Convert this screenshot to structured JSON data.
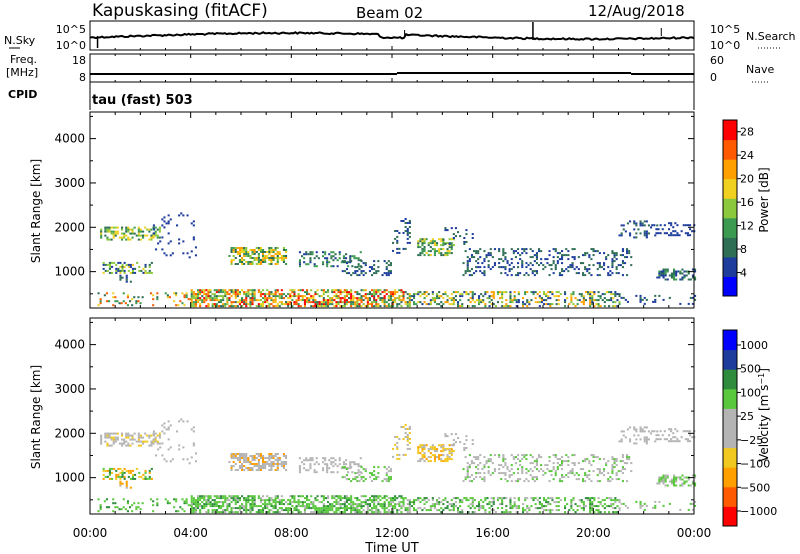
{
  "header": {
    "station": "Kapuskasing (fitACF)",
    "beam": "Beam 02",
    "date": "12/Aug/2018"
  },
  "labels": {
    "n_sky": "N.Sky",
    "n_search": "N.Search",
    "freq_top": "Freq.",
    "freq_unit": "[MHz]",
    "cpid": "CPID",
    "nave": "Nave",
    "ctrl_prog": "tau (fast) 503"
  },
  "noise_axis": {
    "left_top": "10^5",
    "left_bottom": "10^0",
    "right_top": "10^5",
    "right_bottom": "10^0"
  },
  "freq_axis": {
    "left_top": "18",
    "left_bottom": "8",
    "right_top": "60",
    "right_bottom": "0"
  },
  "colors": {
    "power": [
      "#0000ff",
      "#1e3c9c",
      "#2e6e55",
      "#3c9a50",
      "#8cc83c",
      "#f0d020",
      "#ffa000",
      "#ff5a00",
      "#ff0000"
    ],
    "velocity": [
      "#ff0000",
      "#ff5a00",
      "#ffa000",
      "#f0c820",
      "#b4b4b4",
      "#b4b4b4",
      "#5ac83c",
      "#2e8c3c",
      "#1e3c9c",
      "#0000ff"
    ]
  },
  "chart_data": [
    {
      "type": "heatmap",
      "name": "power",
      "ylabel": "Slant Range [km]",
      "ylim": [
        180,
        4600
      ],
      "yticks": [
        "1000",
        "2000",
        "3000",
        "4000"
      ],
      "xlim": [
        0,
        24
      ],
      "colorbar_label": "Power [dB]",
      "colorbar_ticks": [
        "4",
        "8",
        "12",
        "16",
        "20",
        "24",
        "28"
      ],
      "colorbar_range": [
        0,
        30
      ]
    },
    {
      "type": "heatmap",
      "name": "velocity",
      "ylabel": "Slant Range [km]",
      "ylim": [
        180,
        4600
      ],
      "yticks": [
        "1000",
        "2000",
        "3000",
        "4000"
      ],
      "xlim": [
        0,
        24
      ],
      "xlabel": "Time UT",
      "xticks": [
        "00:00",
        "04:00",
        "08:00",
        "12:00",
        "16:00",
        "20:00",
        "00:00"
      ],
      "colorbar_label": "Velocity [m s^-1]",
      "colorbar_ticks": [
        "1000",
        "500",
        "100",
        "25",
        "−25",
        "−100",
        "−500",
        "−1000"
      ]
    }
  ]
}
